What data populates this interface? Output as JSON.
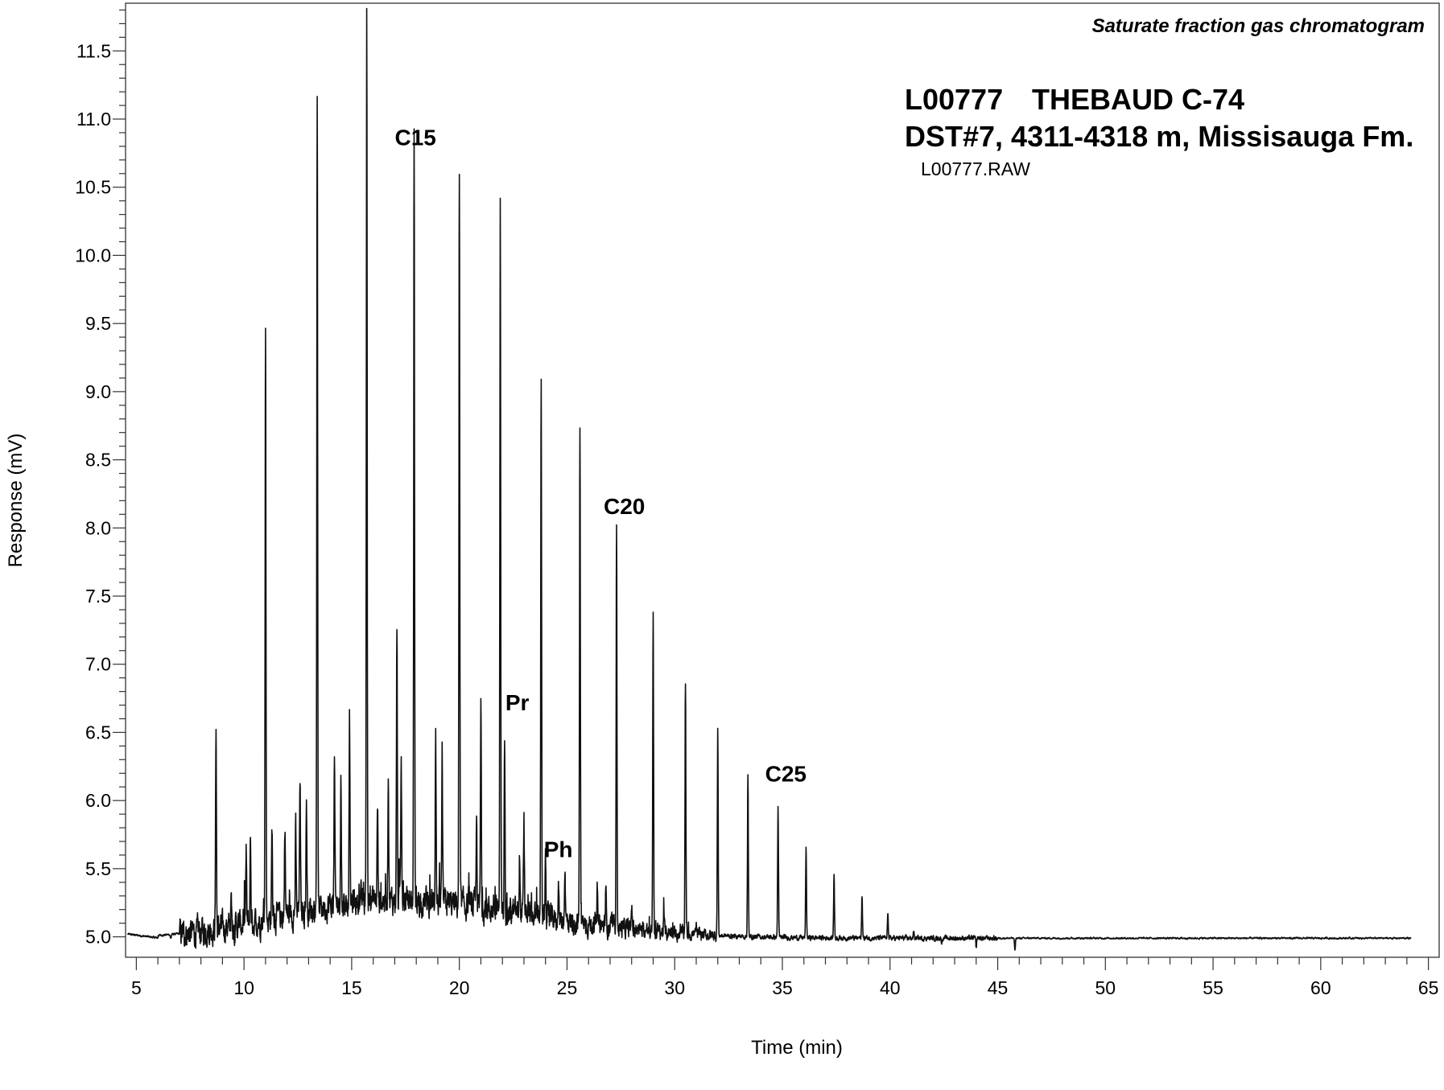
{
  "chart_data": {
    "type": "line",
    "title": "Saturate fraction gas chromatogram",
    "sample_id": "L00777",
    "well": "THEBAUD C-74",
    "interval": "DST#7, 4311-4318 m, Missisauga Fm.",
    "file": "L00777.RAW",
    "xlabel": "Time (min)",
    "ylabel": "Response (mV)",
    "xlim": [
      4.5,
      65.5
    ],
    "ylim": [
      4.85,
      11.85
    ],
    "x_ticks": [
      5,
      10,
      15,
      20,
      25,
      30,
      35,
      40,
      45,
      50,
      55,
      60,
      65
    ],
    "y_ticks": [
      "5.0",
      "5.5",
      "6.0",
      "6.5",
      "7.0",
      "7.5",
      "8.0",
      "8.5",
      "9.0",
      "9.5",
      "10.0",
      "10.5",
      "11.0",
      "11.5"
    ],
    "grid": false,
    "line_color": "#111111",
    "baseline_end": 4.99,
    "peaks": [
      {
        "x": 6.6,
        "y": 5.08
      },
      {
        "x": 7.8,
        "y": 5.1
      },
      {
        "x": 8.3,
        "y": 5.12
      },
      {
        "x": 8.7,
        "y": 6.63
      },
      {
        "x": 9.4,
        "y": 5.3
      },
      {
        "x": 10.1,
        "y": 5.62
      },
      {
        "x": 10.3,
        "y": 5.73
      },
      {
        "x": 11.0,
        "y": 9.43
      },
      {
        "x": 11.3,
        "y": 5.77
      },
      {
        "x": 11.9,
        "y": 5.8
      },
      {
        "x": 12.4,
        "y": 5.72
      },
      {
        "x": 12.6,
        "y": 6.12
      },
      {
        "x": 12.9,
        "y": 5.93
      },
      {
        "x": 13.4,
        "y": 11.09
      },
      {
        "x": 14.2,
        "y": 6.15
      },
      {
        "x": 14.5,
        "y": 6.05
      },
      {
        "x": 14.9,
        "y": 6.47
      },
      {
        "x": 15.7,
        "y": 11.6
      },
      {
        "x": 16.2,
        "y": 5.8
      },
      {
        "x": 16.7,
        "y": 6.05
      },
      {
        "x": 17.1,
        "y": 7.13
      },
      {
        "x": 17.3,
        "y": 6.1
      },
      {
        "x": 17.9,
        "y": 10.75
      },
      {
        "x": 18.9,
        "y": 6.42
      },
      {
        "x": 19.2,
        "y": 6.1
      },
      {
        "x": 20.0,
        "y": 10.39
      },
      {
        "x": 20.8,
        "y": 5.75
      },
      {
        "x": 21.0,
        "y": 6.59
      },
      {
        "x": 21.9,
        "y": 10.29
      },
      {
        "x": 22.1,
        "y": 6.52
      },
      {
        "x": 22.8,
        "y": 5.55
      },
      {
        "x": 23.0,
        "y": 5.75
      },
      {
        "x": 23.8,
        "y": 9.05
      },
      {
        "x": 24.0,
        "y": 5.55
      },
      {
        "x": 24.6,
        "y": 5.42
      },
      {
        "x": 24.9,
        "y": 5.5
      },
      {
        "x": 25.6,
        "y": 8.75
      },
      {
        "x": 26.4,
        "y": 5.3
      },
      {
        "x": 26.8,
        "y": 5.38
      },
      {
        "x": 27.3,
        "y": 8.02
      },
      {
        "x": 28.0,
        "y": 5.3
      },
      {
        "x": 29.0,
        "y": 7.46
      },
      {
        "x": 29.5,
        "y": 5.25
      },
      {
        "x": 30.5,
        "y": 6.99
      },
      {
        "x": 31.0,
        "y": 5.18
      },
      {
        "x": 32.0,
        "y": 6.63
      },
      {
        "x": 33.4,
        "y": 6.29
      },
      {
        "x": 34.8,
        "y": 6.07
      },
      {
        "x": 36.1,
        "y": 5.77
      },
      {
        "x": 37.4,
        "y": 5.58
      },
      {
        "x": 38.7,
        "y": 5.42
      },
      {
        "x": 39.9,
        "y": 5.3
      },
      {
        "x": 41.1,
        "y": 5.16
      },
      {
        "x": 42.4,
        "y": 5.08
      },
      {
        "x": 44.0,
        "y": 5.04
      },
      {
        "x": 45.8,
        "y": 5.02
      }
    ],
    "annotations": [
      {
        "text": "C15",
        "x": 17.9,
        "y": 10.75
      },
      {
        "text": "Pr",
        "x": 22.1,
        "y": 6.52
      },
      {
        "text": "C20",
        "x": 27.3,
        "y": 8.02
      },
      {
        "text": "Ph",
        "x": 24.0,
        "y": 5.55
      },
      {
        "text": "C25",
        "x": 34.8,
        "y": 6.07
      }
    ]
  }
}
